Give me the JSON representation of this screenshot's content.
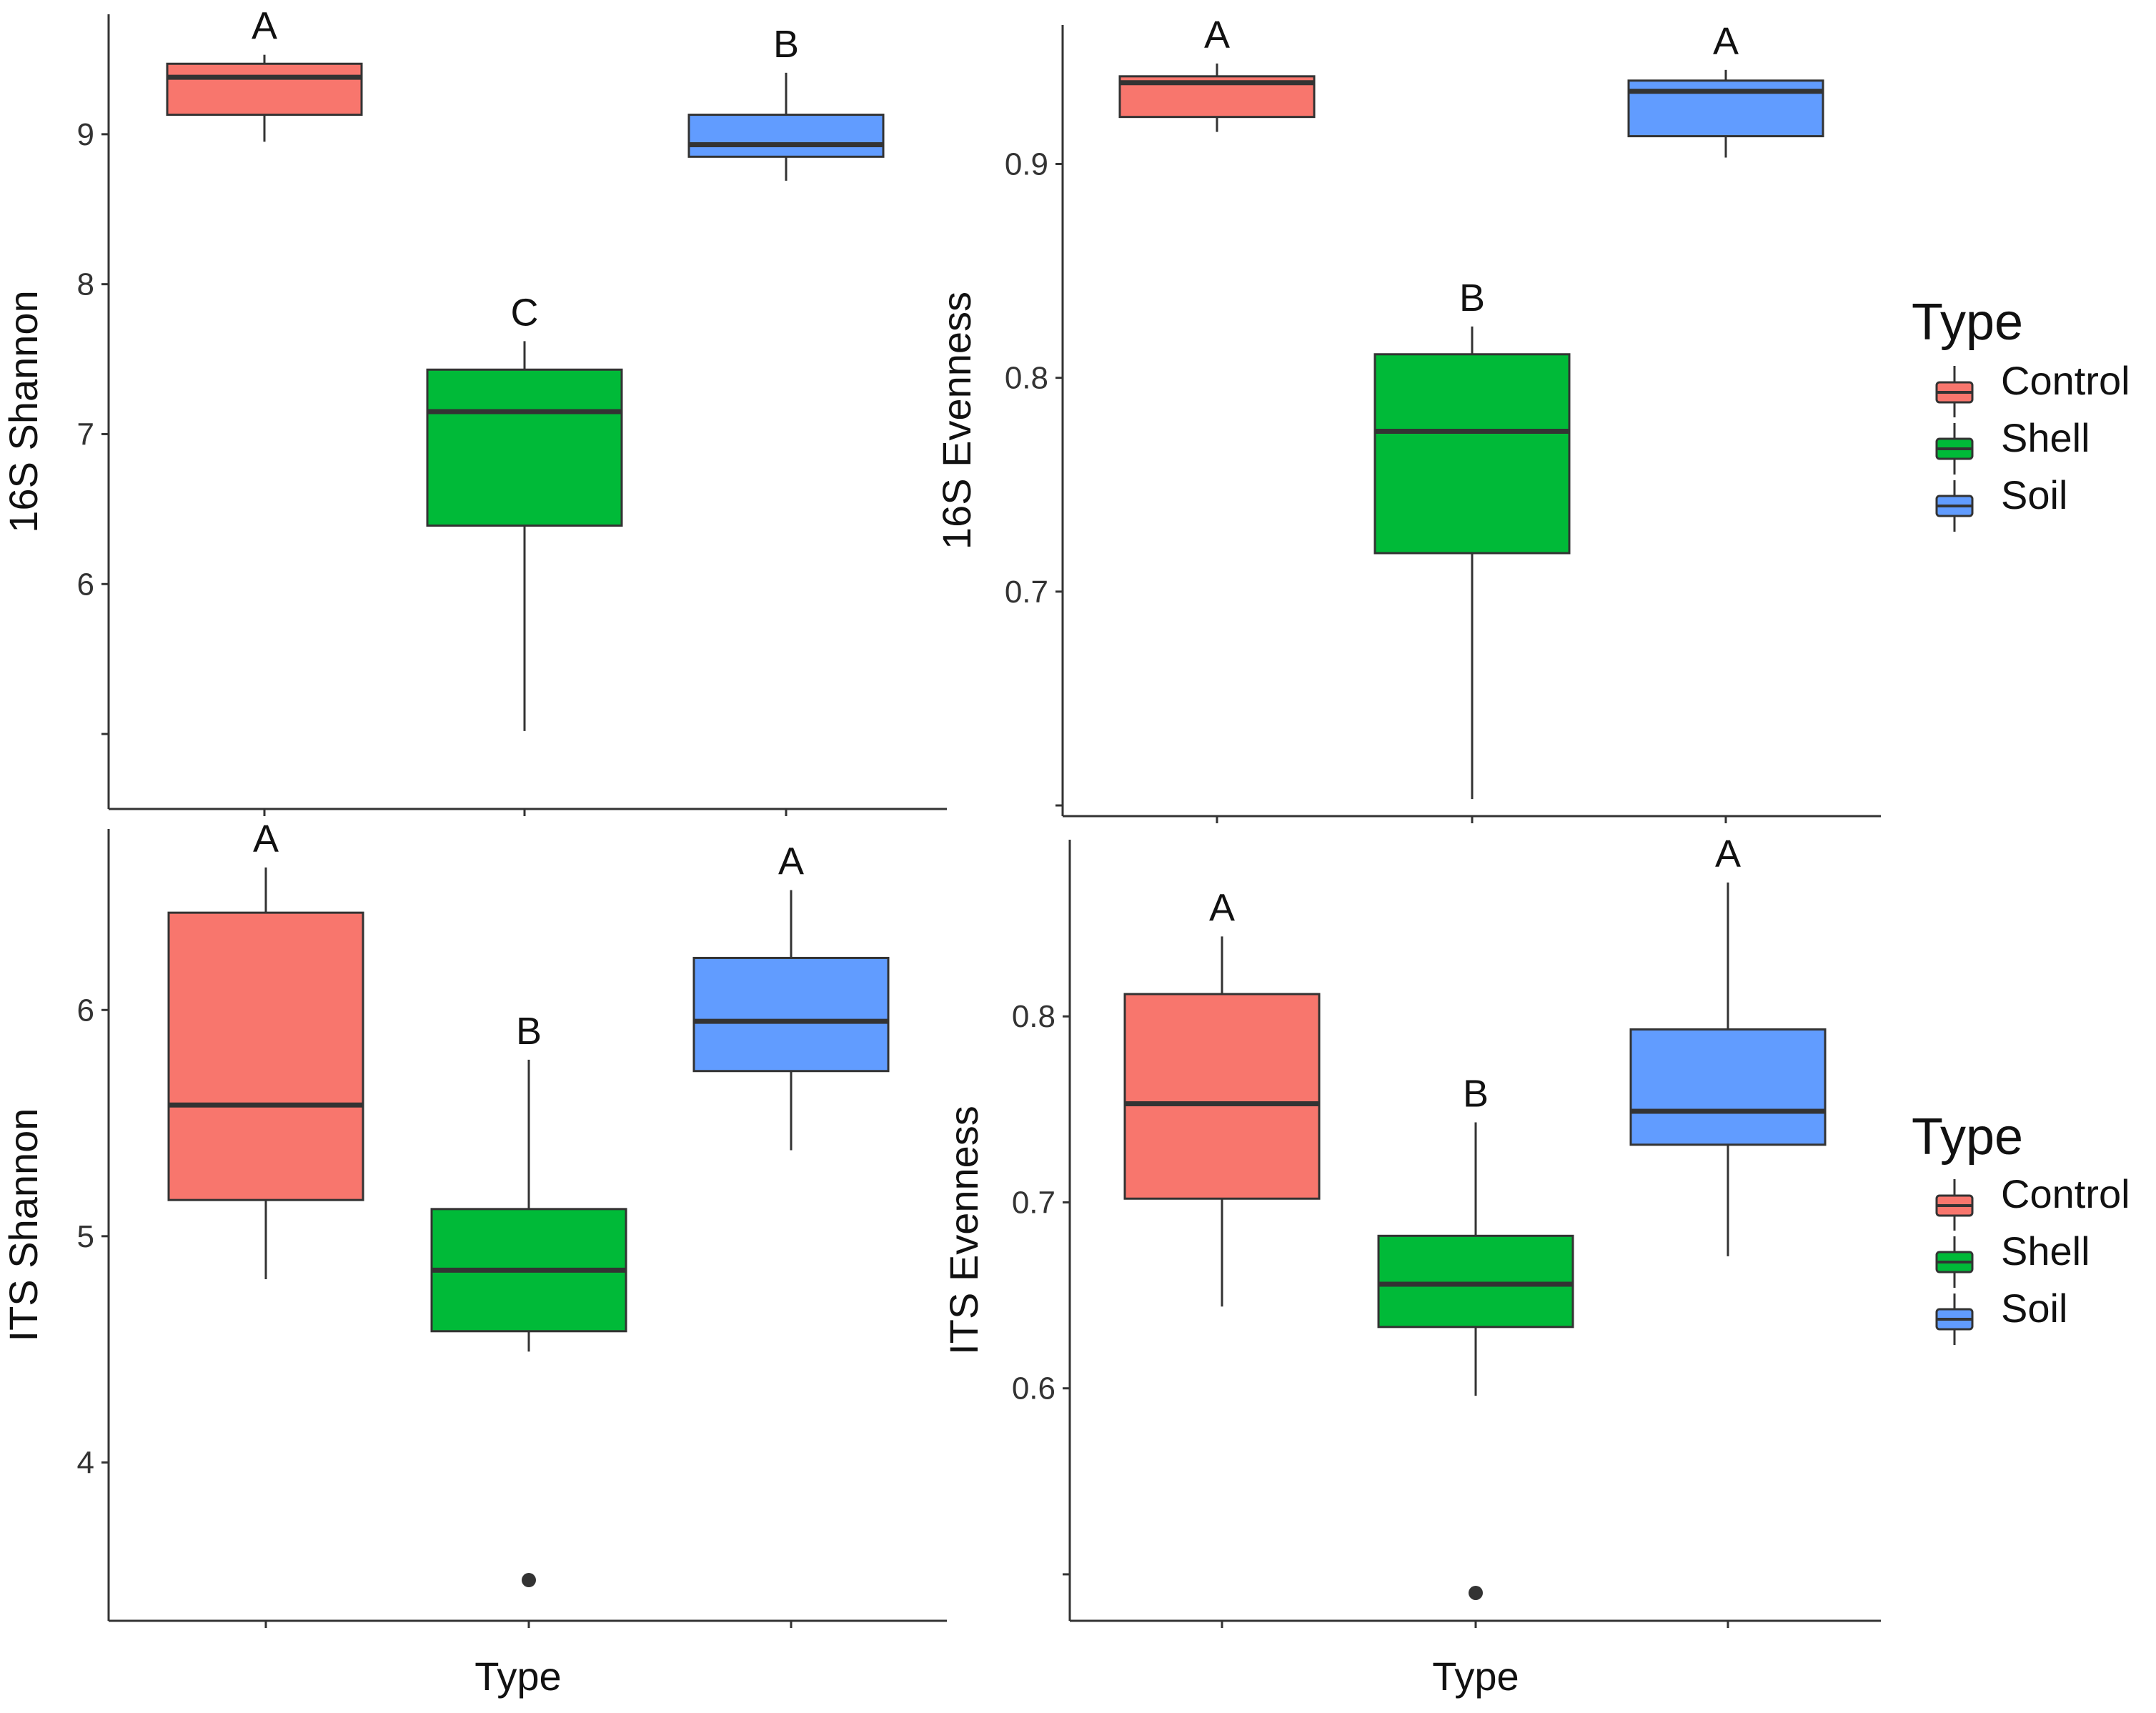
{
  "figure": {
    "x_axis_title": "Type",
    "legend_title": "Type",
    "legend_items": [
      {
        "label": "Control",
        "color": "#F8766D"
      },
      {
        "label": "Shell",
        "color": "#00BA38"
      },
      {
        "label": "Soil",
        "color": "#619CFF"
      }
    ]
  },
  "chart_data": [
    {
      "type": "boxplot",
      "ylabel": "16S Shannon",
      "xlabel": "",
      "ylim": [
        4.5,
        9.8
      ],
      "yticks": [
        5,
        6,
        7,
        8,
        9
      ],
      "ytick_labels": [
        "",
        "6",
        "7",
        "8",
        "9"
      ],
      "categories": [
        "Control",
        "Shell",
        "Soil"
      ],
      "boxes": [
        {
          "category": "Control",
          "whisker_low": 8.95,
          "q1": 9.13,
          "median": 9.38,
          "q3": 9.47,
          "whisker_high": 9.53,
          "outliers": [],
          "letter": "A"
        },
        {
          "category": "Shell",
          "whisker_low": 5.02,
          "q1": 6.39,
          "median": 7.15,
          "q3": 7.43,
          "whisker_high": 7.62,
          "outliers": [],
          "letter": "C"
        },
        {
          "category": "Soil",
          "whisker_low": 8.69,
          "q1": 8.85,
          "median": 8.93,
          "q3": 9.13,
          "whisker_high": 9.41,
          "outliers": [],
          "letter": "B"
        }
      ]
    },
    {
      "type": "boxplot",
      "ylabel": "16S Evenness",
      "xlabel": "",
      "ylim": [
        0.595,
        0.965
      ],
      "yticks": [
        0.6,
        0.7,
        0.8,
        0.9
      ],
      "ytick_labels": [
        "",
        "0.7",
        "0.8",
        "0.9"
      ],
      "categories": [
        "Control",
        "Shell",
        "Soil"
      ],
      "boxes": [
        {
          "category": "Control",
          "whisker_low": 0.915,
          "q1": 0.922,
          "median": 0.938,
          "q3": 0.941,
          "whisker_high": 0.947,
          "outliers": [],
          "letter": "A"
        },
        {
          "category": "Shell",
          "whisker_low": 0.603,
          "q1": 0.718,
          "median": 0.775,
          "q3": 0.811,
          "whisker_high": 0.824,
          "outliers": [],
          "letter": "B"
        },
        {
          "category": "Soil",
          "whisker_low": 0.903,
          "q1": 0.913,
          "median": 0.934,
          "q3": 0.939,
          "whisker_high": 0.944,
          "outliers": [],
          "letter": "A"
        }
      ]
    },
    {
      "type": "boxplot",
      "ylabel": "ITS Shannon",
      "xlabel": "Type",
      "ylim": [
        3.3,
        6.8
      ],
      "yticks": [
        4,
        5,
        6
      ],
      "ytick_labels": [
        "4",
        "5",
        "6"
      ],
      "categories": [
        "Control",
        "Shell",
        "Soil"
      ],
      "boxes": [
        {
          "category": "Control",
          "whisker_low": 4.81,
          "q1": 5.16,
          "median": 5.58,
          "q3": 6.43,
          "whisker_high": 6.63,
          "outliers": [],
          "letter": "A"
        },
        {
          "category": "Shell",
          "whisker_low": 4.49,
          "q1": 4.58,
          "median": 4.85,
          "q3": 5.12,
          "whisker_high": 5.78,
          "outliers": [
            3.48
          ],
          "letter": "B"
        },
        {
          "category": "Soil",
          "whisker_low": 5.38,
          "q1": 5.73,
          "median": 5.95,
          "q3": 6.23,
          "whisker_high": 6.53,
          "outliers": [],
          "letter": "A"
        }
      ]
    },
    {
      "type": "boxplot",
      "ylabel": "ITS Evenness",
      "xlabel": "Type",
      "ylim": [
        0.475,
        0.895
      ],
      "yticks": [
        0.5,
        0.6,
        0.7,
        0.8
      ],
      "ytick_labels": [
        "",
        "0.6",
        "0.7",
        "0.8"
      ],
      "categories": [
        "Control",
        "Shell",
        "Soil"
      ],
      "boxes": [
        {
          "category": "Control",
          "whisker_low": 0.644,
          "q1": 0.702,
          "median": 0.753,
          "q3": 0.812,
          "whisker_high": 0.843,
          "outliers": [],
          "letter": "A"
        },
        {
          "category": "Shell",
          "whisker_low": 0.596,
          "q1": 0.633,
          "median": 0.656,
          "q3": 0.682,
          "whisker_high": 0.743,
          "outliers": [
            0.49
          ],
          "letter": "B"
        },
        {
          "category": "Soil",
          "whisker_low": 0.671,
          "q1": 0.731,
          "median": 0.749,
          "q3": 0.793,
          "whisker_high": 0.872,
          "outliers": [],
          "letter": "A"
        }
      ]
    }
  ]
}
